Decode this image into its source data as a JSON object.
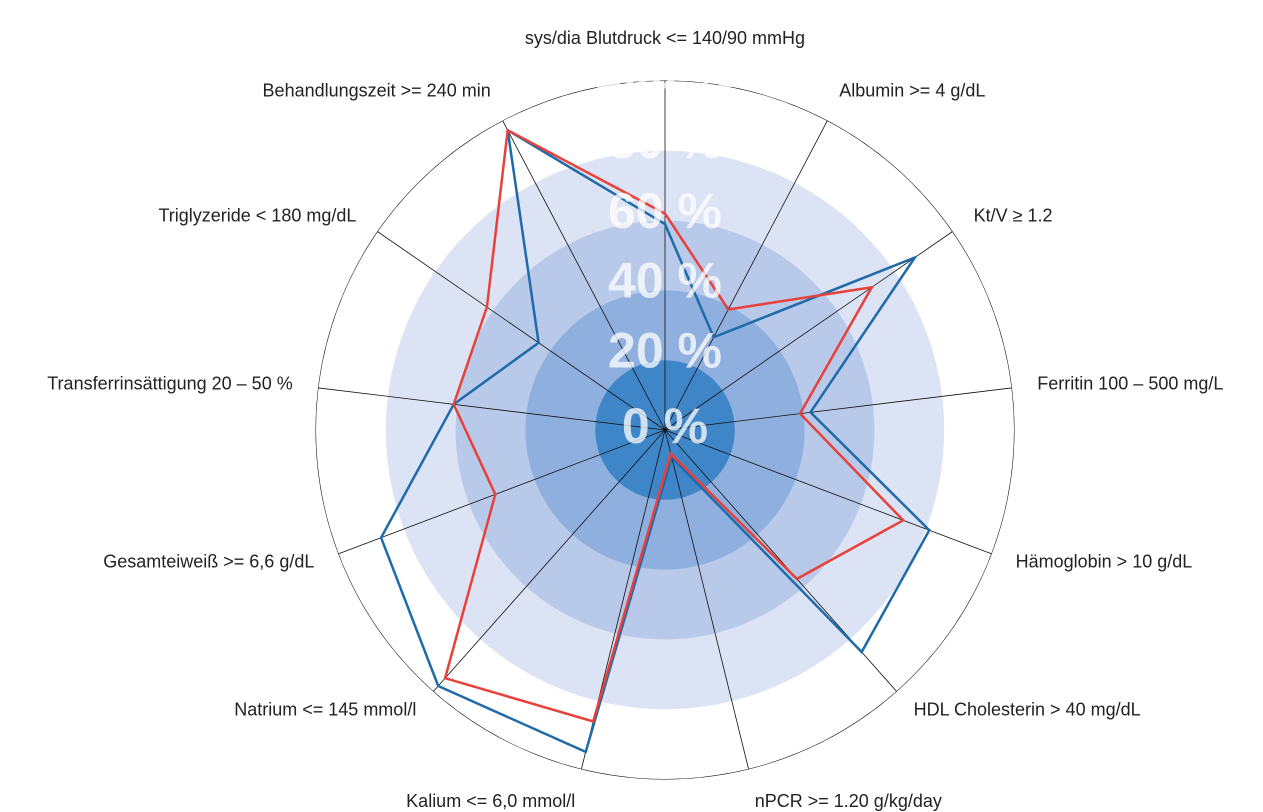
{
  "chart_data": {
    "type": "radar",
    "categories": [
      "sys/dia Blutdruck <= 140/90 mmHg",
      "Albumin >= 4 g/dL",
      "Kt/V ≥ 1.2",
      "Ferritin 100 – 500 mg/L",
      "Hämoglobin > 10 g/dL",
      "HDL Cholesterin > 40 mg/dL",
      "nPCR >= 1.20 g/kg/day",
      "Kalium <= 6,0 mmol/l",
      "Natrium <= 145 mmol/l",
      "Gesamteiweiß >= 6,6 g/dL",
      "Transferrinsättigung 20 – 50 %",
      "Triglyzeride < 180 mg/dL",
      "Behandlungszeit >= 240 min"
    ],
    "series": [
      {
        "color": "#1f6aa8",
        "values": [
          59,
          30,
          87,
          42,
          81,
          85,
          8,
          95,
          98,
          87,
          61,
          44,
          97
        ]
      },
      {
        "color": "#e8413a",
        "values": [
          62,
          39,
          72,
          39,
          73,
          57,
          7,
          86,
          95,
          52,
          61,
          62,
          97
        ]
      }
    ],
    "rlim": [
      0,
      100
    ],
    "rticks": [
      {
        "value": 0,
        "label": "0 %"
      },
      {
        "value": 20,
        "label": "20 %"
      },
      {
        "value": 40,
        "label": "40 %"
      },
      {
        "value": 60,
        "label": "60 %"
      },
      {
        "value": 80,
        "label": "80 %"
      },
      {
        "value": 100,
        "label": "100 %"
      }
    ],
    "band_colors": [
      "#3f86c8",
      "#8fb0df",
      "#b8c9ea",
      "#dbe3f4",
      "#ffffff"
    ]
  }
}
